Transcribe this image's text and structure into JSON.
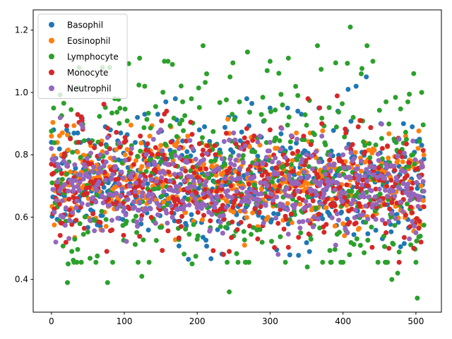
{
  "chart_data": {
    "type": "scatter",
    "title": "",
    "xlabel": "",
    "ylabel": "",
    "xlim": [
      -25,
      535
    ],
    "ylim": [
      0.295,
      1.265
    ],
    "xticks": [
      0,
      100,
      200,
      300,
      400,
      500
    ],
    "yticks": [
      0.4,
      0.6,
      0.8,
      1.0,
      1.2
    ],
    "xtick_labels": [
      "0",
      "100",
      "200",
      "300",
      "400",
      "500"
    ],
    "ytick_labels": [
      "0.4",
      "0.6",
      "0.8",
      "1.0",
      "1.2"
    ],
    "grid": false,
    "legend_position": "top-left",
    "n_points_per_series": 512,
    "series": [
      {
        "name": "Basophil",
        "color": "#1f77b4",
        "anchor_points": [
          [
            0,
            0.84
          ],
          [
            3,
            0.88
          ],
          [
            21,
            0.88
          ],
          [
            36,
            0.87
          ],
          [
            74,
            0.89
          ],
          [
            81,
            0.88
          ],
          [
            95,
            0.87
          ],
          [
            118,
            0.92
          ],
          [
            128,
            0.93
          ],
          [
            146,
            0.93
          ],
          [
            157,
            0.97
          ],
          [
            170,
            0.98
          ],
          [
            203,
            0.88
          ],
          [
            210,
            0.89
          ],
          [
            243,
            0.92
          ],
          [
            252,
            0.92
          ],
          [
            268,
            0.98
          ],
          [
            300,
            0.95
          ],
          [
            324,
            0.95
          ],
          [
            338,
            0.94
          ],
          [
            343,
            0.93
          ],
          [
            367,
            0.95
          ],
          [
            393,
            0.94
          ],
          [
            407,
            1.01
          ],
          [
            418,
            1.02
          ],
          [
            432,
            1.05
          ],
          [
            452,
            0.9
          ],
          [
            483,
            0.9
          ],
          [
            495,
            0.89
          ],
          [
            505,
            0.85
          ]
        ],
        "center": 0.7,
        "spread": 0.09
      },
      {
        "name": "Eosinophil",
        "color": "#ff7f0e",
        "anchor_points": [
          [
            0,
            0.86
          ],
          [
            14,
            0.8
          ],
          [
            70,
            0.81
          ],
          [
            101,
            0.8
          ],
          [
            135,
            0.86
          ],
          [
            150,
            0.83
          ],
          [
            187,
            0.86
          ],
          [
            212,
            0.83
          ],
          [
            265,
            0.51
          ],
          [
            282,
            0.85
          ],
          [
            355,
            0.87
          ],
          [
            423,
            0.91
          ],
          [
            486,
            0.86
          ],
          [
            500,
            0.78
          ]
        ],
        "center": 0.71,
        "spread": 0.07
      },
      {
        "name": "Lymphocyte",
        "color": "#2ca02c",
        "anchor_points": [
          [
            1,
            0.71
          ],
          [
            3,
            0.95
          ],
          [
            22,
            0.39
          ],
          [
            23,
            0.45
          ],
          [
            28,
            0.49
          ],
          [
            38,
            1.08
          ],
          [
            70,
            1.08
          ],
          [
            77,
            0.39
          ],
          [
            80,
            1.08
          ],
          [
            87,
            0.98
          ],
          [
            121,
            1.11
          ],
          [
            124,
            0.41
          ],
          [
            128,
            1.02
          ],
          [
            155,
            1.1
          ],
          [
            160,
            1.1
          ],
          [
            166,
            1.09
          ],
          [
            193,
            0.45
          ],
          [
            208,
            1.15
          ],
          [
            213,
            1.06
          ],
          [
            244,
            0.36
          ],
          [
            245,
            1.05
          ],
          [
            258,
            0.97
          ],
          [
            269,
            1.13
          ],
          [
            296,
            1.07
          ],
          [
            300,
            1.1
          ],
          [
            325,
            1.11
          ],
          [
            338,
            0.99
          ],
          [
            351,
            0.44
          ],
          [
            365,
            1.15
          ],
          [
            410,
            1.21
          ],
          [
            425,
            1.06
          ],
          [
            433,
            1.15
          ],
          [
            441,
            1.1
          ],
          [
            459,
            0.97
          ],
          [
            467,
            0.4
          ],
          [
            475,
            0.42
          ],
          [
            489,
            0.97
          ],
          [
            502,
            0.34
          ],
          [
            508,
            1.0
          ],
          [
            512,
            0.81
          ]
        ],
        "center": 0.72,
        "spread": 0.16
      },
      {
        "name": "Monocyte",
        "color": "#d62728",
        "anchor_points": [
          [
            0,
            0.77
          ],
          [
            15,
            0.58
          ],
          [
            42,
            0.91
          ],
          [
            76,
            0.49
          ],
          [
            100,
            0.84
          ],
          [
            127,
            0.8
          ],
          [
            158,
            0.94
          ],
          [
            178,
            0.57
          ],
          [
            207,
            0.8
          ],
          [
            244,
            0.49
          ],
          [
            283,
            0.53
          ],
          [
            300,
            0.88
          ],
          [
            318,
            0.8
          ],
          [
            346,
            0.86
          ],
          [
            371,
            0.9
          ],
          [
            404,
            0.87
          ],
          [
            424,
            0.91
          ],
          [
            459,
            0.55
          ],
          [
            463,
            0.5
          ],
          [
            497,
            0.5
          ],
          [
            507,
            0.52
          ],
          [
            512,
            0.68
          ]
        ],
        "center": 0.7,
        "spread": 0.09
      },
      {
        "name": "Neutrophil",
        "color": "#9467bd",
        "anchor_points": [
          [
            0,
            0.82
          ],
          [
            6,
            0.52
          ],
          [
            50,
            0.64
          ],
          [
            100,
            0.63
          ],
          [
            150,
            0.88
          ],
          [
            200,
            0.63
          ],
          [
            250,
            0.87
          ],
          [
            286,
            0.86
          ],
          [
            300,
            0.84
          ],
          [
            337,
            0.85
          ],
          [
            371,
            0.86
          ],
          [
            390,
            0.51
          ],
          [
            400,
            0.8
          ],
          [
            450,
            0.69
          ],
          [
            491,
            0.53
          ],
          [
            500,
            0.55
          ],
          [
            512,
            0.76
          ]
        ],
        "center": 0.7,
        "spread": 0.07
      }
    ]
  }
}
